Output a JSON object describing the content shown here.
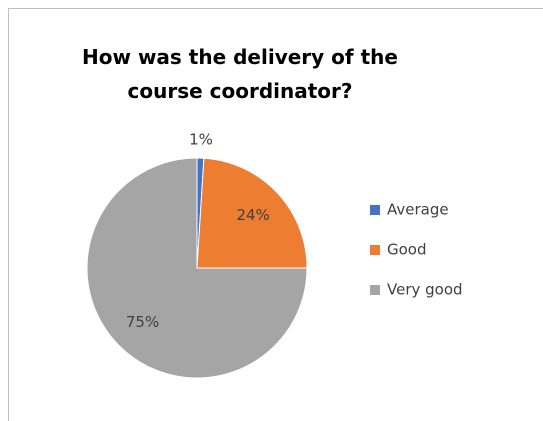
{
  "chart_data": {
    "type": "pie",
    "title": "How was the delivery of the course coordinator?",
    "categories": [
      "Average",
      "Good",
      "Very good"
    ],
    "values": [
      1,
      24,
      75
    ],
    "value_labels": [
      "1%",
      "24%",
      "75%"
    ],
    "colors": [
      "#4472c4",
      "#ed7d31",
      "#a5a5a5"
    ],
    "legend": "right"
  }
}
